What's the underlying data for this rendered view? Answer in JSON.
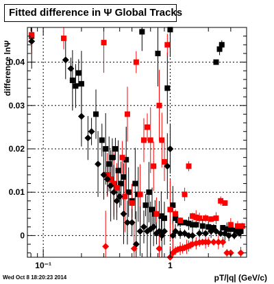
{
  "chart_data": {
    "type": "scatter",
    "title": "Fitted difference in Ψ   Global Tracks",
    "xlabel": "pT/|q|  (GeV/c)",
    "ylabel": "difference lnΨ",
    "xscale": "log",
    "xlim": [
      0.075,
      4.0
    ],
    "ylim": [
      -0.005,
      0.048
    ],
    "grid": true,
    "x_ticks": [
      {
        "value": 0.1,
        "label": "10⁻¹"
      },
      {
        "value": 1,
        "label": "1"
      }
    ],
    "y_ticks": [
      {
        "value": 0,
        "label": "0"
      },
      {
        "value": 0.01,
        "label": "0.01"
      },
      {
        "value": 0.02,
        "label": "0.02"
      },
      {
        "value": 0.03,
        "label": "0.03"
      },
      {
        "value": 0.04,
        "label": "0.04"
      }
    ],
    "series": [
      {
        "marker": "square",
        "color": "#000000",
        "points": [
          [
            0.081,
            0.046
          ],
          [
            0.17,
            0.0358
          ],
          [
            0.18,
            0.0345
          ],
          [
            0.19,
            0.0375
          ],
          [
            0.2,
            0.035
          ],
          [
            0.26,
            0.028
          ],
          [
            0.29,
            0.022
          ],
          [
            0.31,
            0.02
          ],
          [
            0.33,
            0.0165
          ],
          [
            0.35,
            0.018
          ],
          [
            0.37,
            0.02
          ],
          [
            0.39,
            0.015
          ],
          [
            0.41,
            0.012
          ],
          [
            0.43,
            0.0135
          ],
          [
            0.45,
            0.0175
          ],
          [
            0.47,
            0.01
          ],
          [
            0.5,
            0.008
          ],
          [
            0.53,
            0.012
          ],
          [
            0.56,
            0.0095
          ],
          [
            0.6,
            0.047
          ],
          [
            0.64,
            0.007
          ],
          [
            0.68,
            0.01
          ],
          [
            0.72,
            0.006
          ],
          [
            0.76,
            0.005
          ],
          [
            0.8,
            0.042
          ],
          [
            0.85,
            0.0045
          ],
          [
            0.9,
            0.004
          ],
          [
            0.95,
            0.034
          ],
          [
            1.0,
            0.0475
          ],
          [
            1.05,
            0.007
          ],
          [
            1.1,
            0.004
          ],
          [
            1.15,
            0.0035
          ],
          [
            1.2,
            0.003
          ],
          [
            1.3,
            0.003
          ],
          [
            1.4,
            0.0028
          ],
          [
            1.5,
            0.0025
          ],
          [
            1.6,
            0.0025
          ],
          [
            1.8,
            0.0022
          ],
          [
            2.0,
            0.002
          ],
          [
            2.2,
            0.0018
          ],
          [
            2.3,
            0.04
          ],
          [
            2.45,
            0.043
          ],
          [
            2.55,
            0.044
          ],
          [
            2.6,
            0.0018
          ],
          [
            2.8,
            0.0015
          ],
          [
            3.0,
            0.0015
          ],
          [
            3.3,
            0.0012
          ],
          [
            3.6,
            0.001
          ]
        ]
      },
      {
        "marker": "square",
        "color": "#ff0000",
        "points": [
          [
            0.081,
            0.0463
          ],
          [
            0.145,
            0.0455
          ],
          [
            0.3,
            0.0445
          ],
          [
            0.32,
            0.014
          ],
          [
            0.34,
            0.013
          ],
          [
            0.36,
            0.012
          ],
          [
            0.38,
            0.011
          ],
          [
            0.42,
            0.018
          ],
          [
            0.44,
            0.009
          ],
          [
            0.46,
            0.028
          ],
          [
            0.5,
            0.0075
          ],
          [
            0.54,
            0.04
          ],
          [
            0.58,
            0.0095
          ],
          [
            0.62,
            0.022
          ],
          [
            0.66,
            0.025
          ],
          [
            0.7,
            0.022
          ],
          [
            0.74,
            0.016
          ],
          [
            0.78,
            0.005
          ],
          [
            0.82,
            0.03
          ],
          [
            0.86,
            0.022
          ],
          [
            0.9,
            0.017
          ],
          [
            0.95,
            0.044
          ],
          [
            1.0,
            0.006
          ],
          [
            1.1,
            0.005
          ],
          [
            1.2,
            0.0035
          ],
          [
            1.3,
            0.0095
          ],
          [
            1.4,
            0.016
          ],
          [
            1.5,
            0.0045
          ],
          [
            1.6,
            0.0042
          ],
          [
            1.7,
            0.004
          ],
          [
            1.9,
            0.004
          ],
          [
            2.1,
            0.0038
          ],
          [
            2.3,
            0.004
          ],
          [
            2.5,
            0.008
          ],
          [
            2.7,
            0.0075
          ],
          [
            3.0,
            0.0025
          ],
          [
            3.4,
            0.0022
          ],
          [
            3.7,
            0.0022
          ]
        ]
      },
      {
        "marker": "diamond",
        "color": "#000000",
        "points": [
          [
            0.081,
            0.0448
          ],
          [
            0.15,
            0.0405
          ],
          [
            0.165,
            0.0385
          ],
          [
            0.2,
            0.0275
          ],
          [
            0.225,
            0.0225
          ],
          [
            0.24,
            0.024
          ],
          [
            0.27,
            0.0165
          ],
          [
            0.3,
            0.014
          ],
          [
            0.32,
            0.013
          ],
          [
            0.34,
            0.0115
          ],
          [
            0.36,
            0.01
          ],
          [
            0.38,
            0.008
          ],
          [
            0.4,
            0.009
          ],
          [
            0.43,
            0.005
          ],
          [
            0.46,
            0.003
          ],
          [
            0.5,
            0.003
          ],
          [
            0.54,
            -0.002
          ],
          [
            0.58,
            0.001
          ],
          [
            0.62,
            0.002
          ],
          [
            0.66,
            0.001
          ],
          [
            0.7,
            0.0015
          ],
          [
            0.74,
            0.002
          ],
          [
            0.78,
            0.0005
          ],
          [
            0.82,
            0.001
          ],
          [
            0.86,
            0.0
          ],
          [
            0.9,
            0.001
          ],
          [
            0.95,
            0.016
          ],
          [
            1.0,
            0.02
          ],
          [
            1.05,
            0.0
          ],
          [
            1.1,
            0.001
          ],
          [
            1.2,
            0.0005
          ],
          [
            1.3,
            0.0005
          ],
          [
            1.4,
            0.0
          ],
          [
            1.5,
            0.0
          ],
          [
            1.7,
            0.0005
          ],
          [
            1.9,
            0.0005
          ],
          [
            2.1,
            0.001
          ],
          [
            2.3,
            0.001
          ],
          [
            2.5,
            0.0005
          ],
          [
            2.7,
            0.0005
          ],
          [
            2.9,
            0.0
          ],
          [
            3.2,
            0.0
          ],
          [
            3.5,
            0.0005
          ]
        ]
      },
      {
        "marker": "diamond",
        "color": "#ff0000",
        "points": [
          [
            0.31,
            -0.0025
          ],
          [
            0.52,
            -0.003
          ],
          [
            0.82,
            -0.003
          ],
          [
            1.0,
            -0.005
          ],
          [
            1.05,
            -0.004
          ],
          [
            1.1,
            -0.0035
          ],
          [
            1.15,
            -0.0032
          ],
          [
            1.2,
            -0.003
          ],
          [
            1.25,
            -0.003
          ],
          [
            1.3,
            -0.0028
          ],
          [
            1.35,
            -0.0026
          ],
          [
            1.4,
            -0.0024
          ],
          [
            1.45,
            -0.0022
          ],
          [
            1.5,
            -0.002
          ],
          [
            1.6,
            -0.0018
          ],
          [
            1.7,
            -0.0016
          ],
          [
            1.8,
            -0.0015
          ],
          [
            1.9,
            -0.0015
          ],
          [
            2.0,
            -0.0015
          ],
          [
            2.2,
            -0.0015
          ],
          [
            2.4,
            -0.0015
          ],
          [
            2.6,
            -0.0015
          ],
          [
            2.8,
            -0.004
          ],
          [
            3.0,
            -0.004
          ],
          [
            3.6,
            -0.004
          ]
        ]
      }
    ],
    "datestamp": "Wed Oct  8 18:20:23 2014"
  }
}
